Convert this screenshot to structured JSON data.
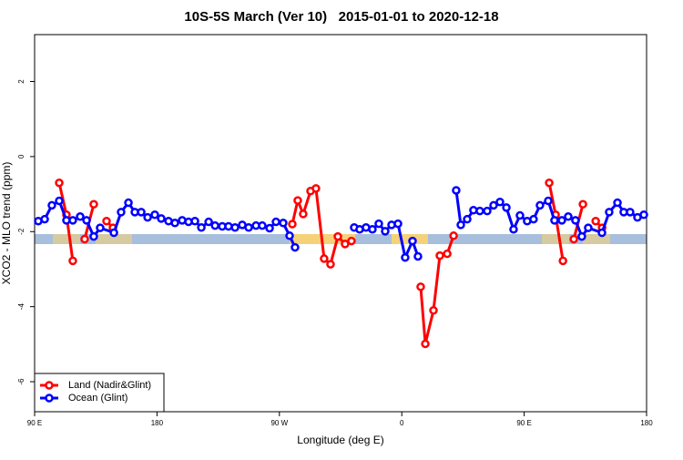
{
  "chart_data": {
    "type": "line",
    "title": "10S-5S March (Ver 10)   2015-01-01 to 2020-12-18",
    "xlabel": "Longitude (deg E)",
    "ylabel": "XCO2 - MLO trend (ppm)",
    "xlim": [
      90,
      540
    ],
    "ylim": [
      -6.8,
      3.25
    ],
    "xticks": [
      {
        "value": 90,
        "label": "90 E"
      },
      180,
      {
        "value": 270,
        "label": "90 W"
      },
      {
        "value": 360,
        "label": "0"
      },
      {
        "value": 450,
        "label": "90 E"
      },
      {
        "value": 540,
        "label": "180"
      }
    ],
    "yticks": [
      -6,
      -4,
      -2,
      0,
      2
    ],
    "legend": "bottom-left",
    "series": [
      {
        "name": "Land (Nadir&Glint)",
        "color": "#ff0000",
        "x": [
          108.1,
          113.4,
          118.1,
          122,
          126.8,
          133.5,
          138,
          142.9,
          147.6,
          200,
          279.5,
          283.5,
          287.5,
          292.9,
          296.9,
          302.9,
          307.6,
          313,
          318.3,
          323,
          350,
          373.9,
          377.3,
          383.3,
          388,
          393.4,
          398.1,
          430,
          468.4,
          473.1,
          478.5,
          482,
          486.5,
          493.2,
          498,
          502.6,
          507.3
        ],
        "values": [
          -0.7,
          -1.55,
          -2.78,
          null,
          -2.2,
          -1.27,
          null,
          -1.72,
          -1.9,
          null,
          -1.8,
          -1.17,
          -1.53,
          -0.92,
          -0.85,
          -2.72,
          -2.87,
          -2.13,
          -2.33,
          -2.25,
          null,
          -3.47,
          -4.99,
          -4.1,
          -2.64,
          -2.59,
          -2.11,
          null,
          -0.7,
          -1.55,
          -2.78,
          null,
          -2.2,
          -1.27,
          null,
          -1.72,
          -1.9
        ]
      },
      {
        "name": "Ocean (Glint)",
        "color": "#0000ff",
        "x": [
          92.7,
          97.4,
          102.7,
          108.1,
          113.4,
          118.1,
          123.5,
          128.2,
          133.5,
          138.2,
          148.3,
          153.6,
          159,
          163.7,
          168.4,
          173.1,
          178.4,
          183.1,
          188.5,
          193.2,
          198.5,
          203.2,
          207.9,
          212.6,
          218,
          222.7,
          228,
          232.6,
          237.4,
          242.7,
          247.4,
          252.8,
          257.4,
          262.8,
          267.5,
          272.8,
          277.5,
          281.5,
          303,
          325,
          329,
          333.7,
          338.4,
          343.1,
          347.8,
          352.5,
          357.2,
          362.5,
          367.9,
          371.9,
          386,
          400,
          403.4,
          408.1,
          412.7,
          417.4,
          422.8,
          427.5,
          432.2,
          436.9,
          442.2,
          446.9,
          452.2,
          456.9,
          461.6,
          467.7,
          472.3,
          477.7,
          482.4,
          487.7,
          492.4,
          497.1,
          507.2,
          512.5,
          518.6,
          523.2,
          527.9,
          533.3,
          538
        ],
        "values": [
          -1.72,
          -1.67,
          -1.3,
          -1.18,
          -1.7,
          -1.7,
          -1.6,
          -1.7,
          -2.13,
          -1.9,
          -2.03,
          -1.48,
          -1.23,
          -1.48,
          -1.48,
          -1.62,
          -1.55,
          -1.65,
          -1.72,
          -1.77,
          -1.7,
          -1.74,
          -1.72,
          -1.89,
          -1.74,
          -1.84,
          -1.86,
          -1.86,
          -1.89,
          -1.82,
          -1.89,
          -1.84,
          -1.84,
          -1.91,
          -1.74,
          -1.77,
          -2.11,
          -2.42,
          null,
          -1.89,
          -1.94,
          -1.89,
          -1.94,
          -1.79,
          -1.99,
          -1.82,
          -1.79,
          -2.69,
          -2.25,
          -2.66,
          null,
          -0.9,
          -1.82,
          -1.67,
          -1.43,
          -1.45,
          -1.45,
          -1.3,
          -1.21,
          -1.36,
          -1.94,
          -1.57,
          -1.72,
          -1.67,
          -1.3,
          -1.18,
          -1.7,
          -1.7,
          -1.6,
          -1.7,
          -2.13,
          -1.9,
          -2.03,
          -1.48,
          -1.23,
          -1.48,
          -1.48,
          -1.62,
          -1.55
        ]
      }
    ]
  }
}
